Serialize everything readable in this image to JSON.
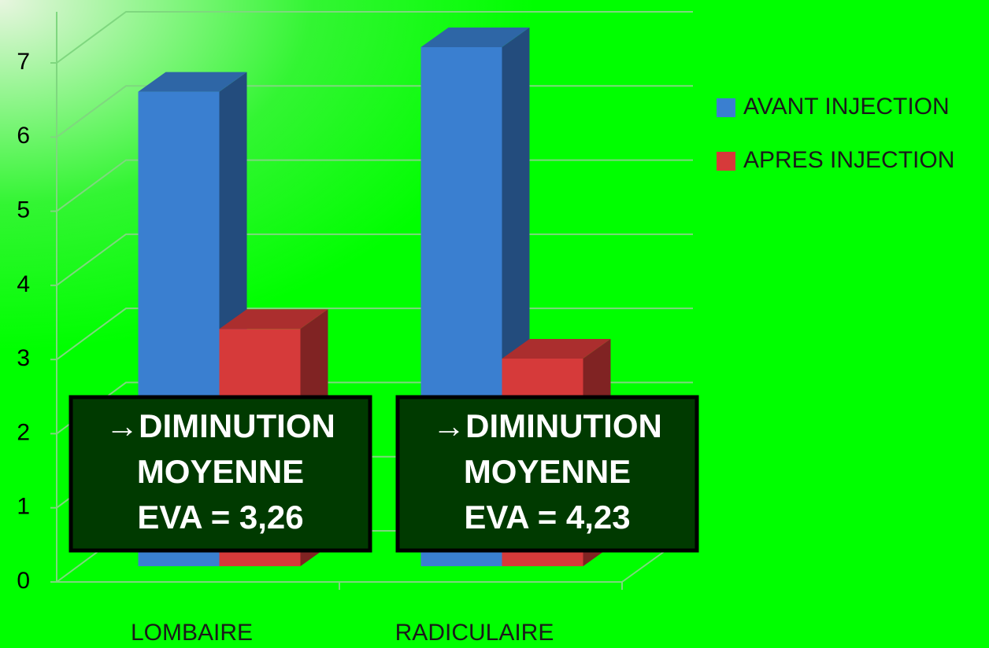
{
  "chart_data": {
    "type": "bar3d",
    "categories": [
      "LOMBAIRE",
      "RADICULAIRE"
    ],
    "series": [
      {
        "name": "AVANT INJECTION",
        "color": "#3a7fd0",
        "values": [
          6.4,
          7.0
        ]
      },
      {
        "name": "APRES INJECTION",
        "color": "#d63a3a",
        "values": [
          3.2,
          2.8
        ]
      }
    ],
    "ylim": [
      0,
      7
    ],
    "yticks": [
      0,
      1,
      2,
      3,
      4,
      5,
      6,
      7
    ],
    "grid": true,
    "legend": "right",
    "annotations": [
      {
        "lines": [
          "→DIMINUTION",
          "MOYENNE",
          "EVA = 3,26"
        ]
      },
      {
        "lines": [
          "→DIMINUTION",
          "MOYENNE",
          "EVA = 4,23"
        ]
      }
    ]
  }
}
